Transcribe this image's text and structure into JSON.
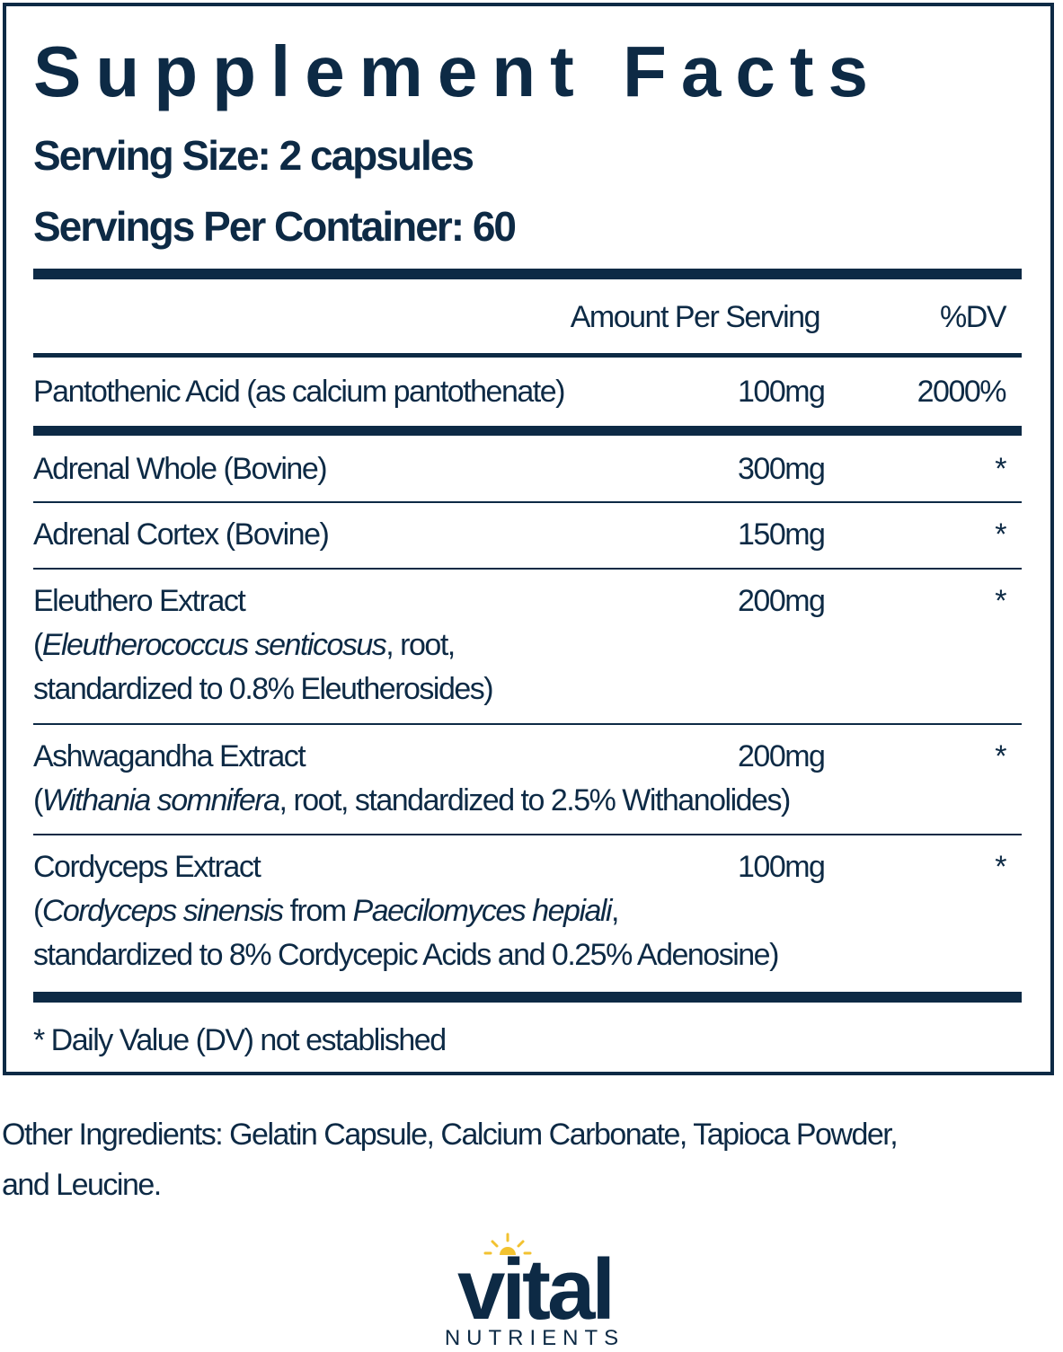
{
  "title": "Supplement Facts",
  "serving_size": "Serving Size: 2 capsules",
  "servings_per_container": "Servings Per Container: 60",
  "header": {
    "amount": "Amount Per Serving",
    "dv": "%DV"
  },
  "rows": [
    {
      "name": "Pantothenic Acid (as calcium pantothenate)",
      "amount": "100mg",
      "dv": "2000%"
    },
    {
      "name": "Adrenal Whole (Bovine)",
      "amount": "300mg",
      "dv": "*"
    },
    {
      "name": "Adrenal Cortex (Bovine)",
      "amount": "150mg",
      "dv": "*"
    },
    {
      "name": "Eleuthero Extract",
      "detail_open": "(",
      "detail_italic": "Eleutherococcus senticosus",
      "detail_rest": ", root,",
      "detail_line2": "standardized to 0.8% Eleutherosides)",
      "amount": "200mg",
      "dv": "*"
    },
    {
      "name": "Ashwagandha Extract",
      "detail_open": "(",
      "detail_italic": "Withania somnifera",
      "detail_rest": ", root, standardized to 2.5% Withanolides)",
      "amount": "200mg",
      "dv": "*"
    },
    {
      "name": "Cordyceps Extract",
      "detail_open": "(",
      "detail_italic": "Cordyceps sinensis",
      "detail_mid": " from ",
      "detail_italic2": "Paecilomyces hepiali",
      "detail_rest": ",",
      "detail_line2": "standardized to 8% Cordycepic Acids and 0.25% Adenosine)",
      "amount": "100mg",
      "dv": "*"
    }
  ],
  "footnote": "* Daily Value (DV) not established",
  "other_ingredients_line1": "Other Ingredients: Gelatin Capsule, Calcium Carbonate, Tapioca Powder,",
  "other_ingredients_line2": "and Leucine.",
  "logo": {
    "word": "vital",
    "subword": "NUTRIENTS",
    "color": "#0d2a45",
    "sun_color": "#f2c230"
  }
}
